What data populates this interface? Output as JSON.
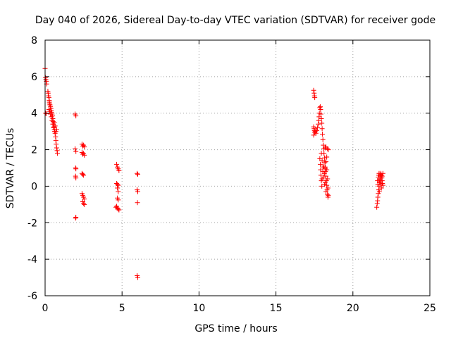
{
  "chart_data": {
    "type": "scatter",
    "title": "Day 040 of 2026, Sidereal Day-to-day VTEC variation (SDTVAR) for receiver gode",
    "xlabel": "GPS time / hours",
    "ylabel": "SDTVAR / TECUs",
    "xlim": [
      0,
      25
    ],
    "ylim": [
      -6,
      8
    ],
    "xticks": [
      0,
      5,
      10,
      15,
      20,
      25
    ],
    "yticks": [
      -6,
      -4,
      -2,
      0,
      2,
      4,
      6,
      8
    ],
    "grid": true,
    "marker": "+",
    "marker_color": "#ff0000",
    "grid_color": "#a0a0a0",
    "series": [
      {
        "name": "SDTVAR",
        "points": [
          [
            0.0,
            6.45
          ],
          [
            0.02,
            5.95
          ],
          [
            0.05,
            5.85
          ],
          [
            0.08,
            5.75
          ],
          [
            0.1,
            5.6
          ],
          [
            0.03,
            4.0
          ],
          [
            0.08,
            3.98
          ],
          [
            0.18,
            5.2
          ],
          [
            0.2,
            5.1
          ],
          [
            0.22,
            4.95
          ],
          [
            0.25,
            4.85
          ],
          [
            0.27,
            4.7
          ],
          [
            0.28,
            4.6
          ],
          [
            0.3,
            4.5
          ],
          [
            0.32,
            4.45
          ],
          [
            0.35,
            4.35
          ],
          [
            0.38,
            4.25
          ],
          [
            0.4,
            4.15
          ],
          [
            0.42,
            4.05
          ],
          [
            0.45,
            3.95
          ],
          [
            0.48,
            3.85
          ],
          [
            0.5,
            3.7
          ],
          [
            0.52,
            3.55
          ],
          [
            0.55,
            3.4
          ],
          [
            0.58,
            3.25
          ],
          [
            0.6,
            3.1
          ],
          [
            0.62,
            3.0
          ],
          [
            0.65,
            2.9
          ],
          [
            0.68,
            2.7
          ],
          [
            0.7,
            2.5
          ],
          [
            0.72,
            2.3
          ],
          [
            0.75,
            2.1
          ],
          [
            0.78,
            1.95
          ],
          [
            0.8,
            1.8
          ],
          [
            0.25,
            4.2
          ],
          [
            0.3,
            4.1
          ],
          [
            0.35,
            3.95
          ],
          [
            0.4,
            3.8
          ],
          [
            0.45,
            3.6
          ],
          [
            0.5,
            3.4
          ],
          [
            0.55,
            3.2
          ],
          [
            0.6,
            3.5
          ],
          [
            0.65,
            3.3
          ],
          [
            0.7,
            3.0
          ],
          [
            0.75,
            3.1
          ],
          [
            1.95,
            3.95
          ],
          [
            2.0,
            3.85
          ],
          [
            1.95,
            2.05
          ],
          [
            2.0,
            1.9
          ],
          [
            1.98,
            1.0
          ],
          [
            2.0,
            0.95
          ],
          [
            1.98,
            0.55
          ],
          [
            2.0,
            0.45
          ],
          [
            2.0,
            -1.7
          ],
          [
            1.98,
            -1.75
          ],
          [
            2.4,
            2.3
          ],
          [
            2.45,
            2.2
          ],
          [
            2.5,
            2.25
          ],
          [
            2.55,
            2.15
          ],
          [
            2.4,
            1.85
          ],
          [
            2.45,
            1.75
          ],
          [
            2.5,
            1.8
          ],
          [
            2.55,
            1.7
          ],
          [
            2.4,
            0.7
          ],
          [
            2.45,
            0.65
          ],
          [
            2.5,
            0.6
          ],
          [
            2.4,
            -0.4
          ],
          [
            2.45,
            -0.5
          ],
          [
            2.5,
            -0.6
          ],
          [
            2.55,
            -0.7
          ],
          [
            2.45,
            -0.85
          ],
          [
            2.5,
            -0.95
          ],
          [
            2.55,
            -1.0
          ],
          [
            4.65,
            1.2
          ],
          [
            4.7,
            1.05
          ],
          [
            4.75,
            0.95
          ],
          [
            4.8,
            0.85
          ],
          [
            4.65,
            0.15
          ],
          [
            4.7,
            0.1
          ],
          [
            4.75,
            0.05
          ],
          [
            4.7,
            -0.1
          ],
          [
            4.75,
            -0.3
          ],
          [
            4.7,
            -0.65
          ],
          [
            4.75,
            -0.75
          ],
          [
            4.65,
            -1.1
          ],
          [
            4.7,
            -1.2
          ],
          [
            4.75,
            -1.25
          ],
          [
            4.8,
            -1.3
          ],
          [
            4.6,
            -1.15
          ],
          [
            5.98,
            0.7
          ],
          [
            6.02,
            0.65
          ],
          [
            5.98,
            -0.2
          ],
          [
            6.02,
            -0.3
          ],
          [
            6.0,
            -0.9
          ],
          [
            5.98,
            -4.9
          ],
          [
            6.02,
            -5.0
          ],
          [
            17.45,
            5.25
          ],
          [
            17.48,
            5.1
          ],
          [
            17.5,
            4.95
          ],
          [
            17.52,
            4.85
          ],
          [
            17.45,
            3.25
          ],
          [
            17.48,
            3.15
          ],
          [
            17.5,
            3.05
          ],
          [
            17.52,
            2.95
          ],
          [
            17.45,
            2.8
          ],
          [
            17.55,
            3.0
          ],
          [
            17.6,
            2.9
          ],
          [
            17.65,
            3.05
          ],
          [
            17.7,
            3.2
          ],
          [
            17.75,
            3.4
          ],
          [
            17.78,
            3.6
          ],
          [
            17.8,
            3.8
          ],
          [
            17.82,
            4.0
          ],
          [
            17.85,
            4.3
          ],
          [
            17.88,
            4.35
          ],
          [
            17.9,
            4.2
          ],
          [
            17.92,
            3.95
          ],
          [
            17.95,
            3.7
          ],
          [
            17.98,
            3.45
          ],
          [
            18.0,
            3.15
          ],
          [
            18.02,
            2.85
          ],
          [
            18.05,
            2.55
          ],
          [
            18.08,
            2.25
          ],
          [
            18.1,
            2.05
          ],
          [
            18.12,
            1.8
          ],
          [
            18.15,
            1.55
          ],
          [
            18.18,
            1.3
          ],
          [
            18.2,
            1.05
          ],
          [
            18.22,
            0.8
          ],
          [
            18.25,
            0.55
          ],
          [
            18.28,
            0.3
          ],
          [
            18.3,
            0.05
          ],
          [
            18.32,
            -0.2
          ],
          [
            18.35,
            -0.45
          ],
          [
            18.38,
            -0.6
          ],
          [
            17.85,
            1.5
          ],
          [
            17.88,
            1.2
          ],
          [
            17.9,
            0.9
          ],
          [
            17.92,
            0.6
          ],
          [
            17.95,
            0.3
          ],
          [
            17.98,
            0.0
          ],
          [
            18.0,
            0.4
          ],
          [
            18.05,
            0.8
          ],
          [
            18.1,
            1.1
          ],
          [
            18.15,
            0.7
          ],
          [
            18.2,
            0.2
          ],
          [
            18.25,
            -0.3
          ],
          [
            17.95,
            1.8
          ],
          [
            18.0,
            1.4
          ],
          [
            18.05,
            1.0
          ],
          [
            18.1,
            0.5
          ],
          [
            18.15,
            0.1
          ],
          [
            18.2,
            0.95
          ],
          [
            18.25,
            1.35
          ],
          [
            18.3,
            1.6
          ],
          [
            18.35,
            2.05
          ],
          [
            18.4,
            2.0
          ],
          [
            18.3,
            0.9
          ],
          [
            18.35,
            0.4
          ],
          [
            18.38,
            -0.1
          ],
          [
            18.4,
            -0.5
          ],
          [
            18.2,
            2.1
          ],
          [
            18.25,
            2.15
          ],
          [
            21.55,
            -1.15
          ],
          [
            21.58,
            -0.95
          ],
          [
            21.6,
            -0.8
          ],
          [
            21.62,
            -0.6
          ],
          [
            21.65,
            -0.4
          ],
          [
            21.68,
            -0.2
          ],
          [
            21.7,
            0.0
          ],
          [
            21.72,
            0.2
          ],
          [
            21.75,
            0.4
          ],
          [
            21.78,
            0.55
          ],
          [
            21.8,
            0.65
          ],
          [
            21.82,
            0.7
          ],
          [
            21.85,
            0.6
          ],
          [
            21.88,
            0.45
          ],
          [
            21.9,
            0.3
          ],
          [
            21.92,
            0.15
          ],
          [
            21.95,
            0.05
          ],
          [
            21.6,
            0.3
          ],
          [
            21.65,
            0.5
          ],
          [
            21.7,
            0.7
          ],
          [
            21.75,
            0.35
          ],
          [
            21.8,
            0.1
          ],
          [
            21.85,
            -0.1
          ],
          [
            21.9,
            0.55
          ],
          [
            21.95,
            0.7
          ],
          [
            21.62,
            0.1
          ],
          [
            21.68,
            0.6
          ],
          [
            21.72,
            -0.3
          ],
          [
            21.78,
            0.25
          ]
        ]
      }
    ]
  }
}
